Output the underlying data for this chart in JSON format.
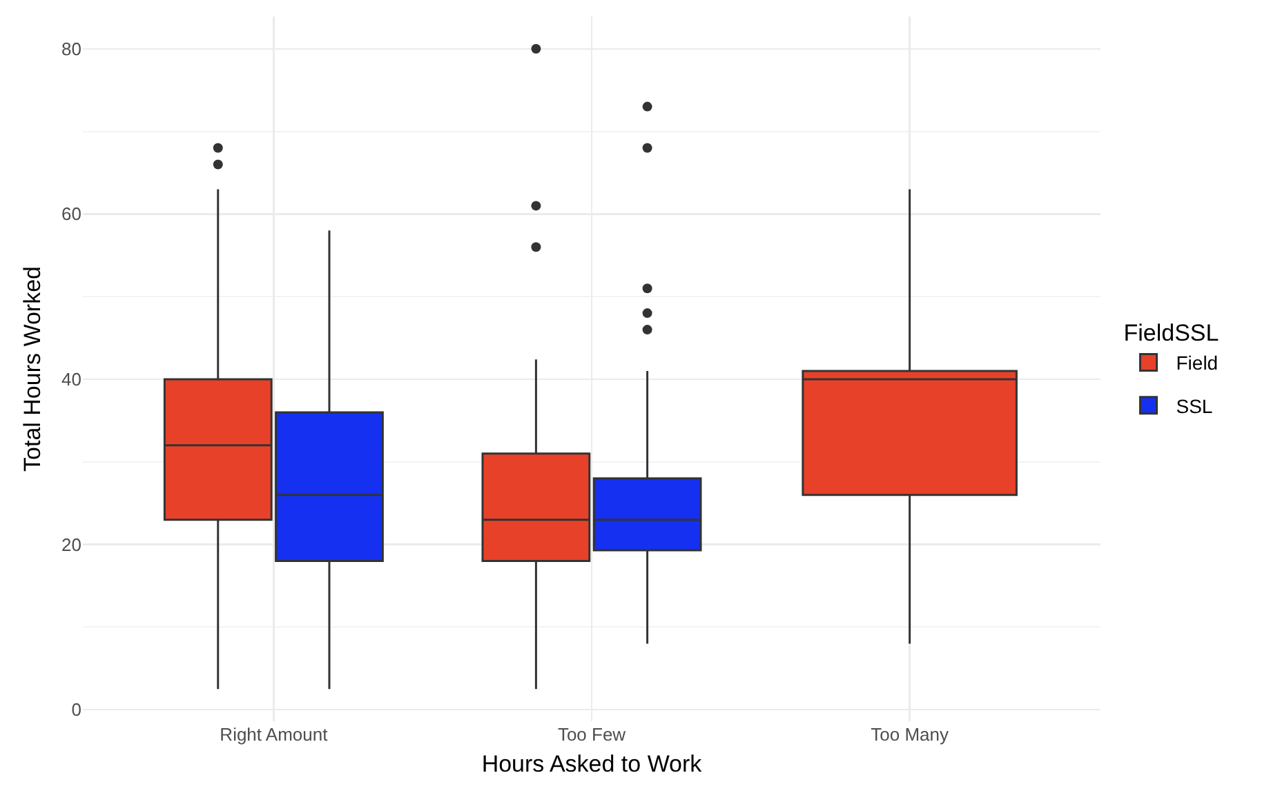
{
  "chart_data": {
    "type": "box",
    "xlabel": "Hours Asked to Work",
    "ylabel": "Total Hours Worked",
    "legend_title": "FieldSSL",
    "categories": [
      "Right Amount",
      "Too Few",
      "Too Many"
    ],
    "ylim": [
      -1.4,
      83.9
    ],
    "yticks": [
      0,
      20,
      40,
      60,
      80
    ],
    "grid": true,
    "legend": "right",
    "series": [
      {
        "name": "Field",
        "color": "#e8412a",
        "boxes": [
          {
            "low": 2.5,
            "q1": 23,
            "median": 32,
            "q3": 40,
            "high": 63,
            "outliers": [
              68,
              66
            ]
          },
          {
            "low": 2.5,
            "q1": 18,
            "median": 23,
            "q3": 31,
            "high": 42.4,
            "outliers": [
              80,
              61,
              56
            ]
          },
          {
            "low": 8,
            "q1": 26,
            "median": 40,
            "q3": 41,
            "high": 63
          }
        ]
      },
      {
        "name": "SSL",
        "color": "#1530f0",
        "boxes": [
          {
            "low": 2.5,
            "q1": 18,
            "median": 26,
            "q3": 36,
            "high": 58
          },
          {
            "low": 8,
            "q1": 19.3,
            "median": 23,
            "q3": 28,
            "high": 41,
            "outliers": [
              73,
              68,
              51,
              48,
              46
            ]
          },
          null
        ]
      }
    ]
  }
}
